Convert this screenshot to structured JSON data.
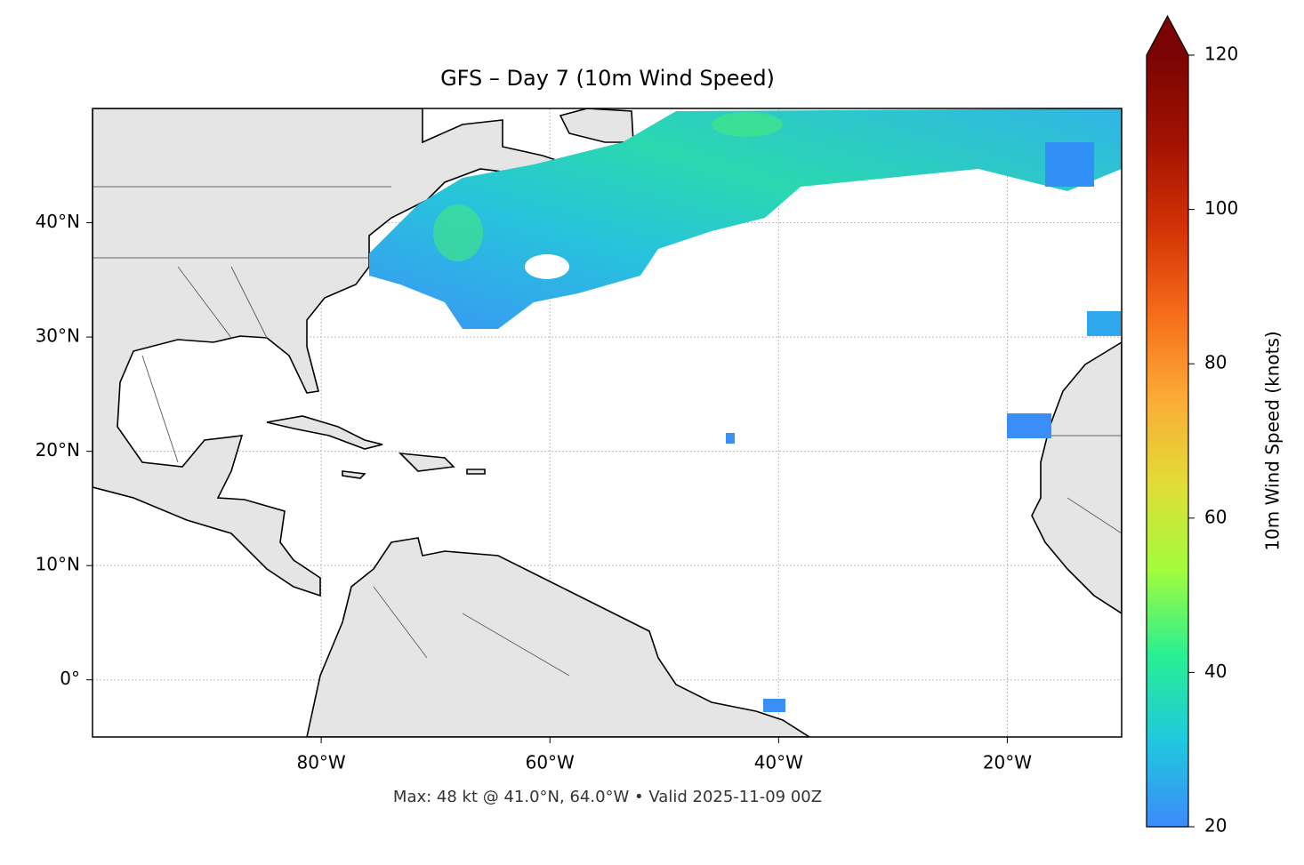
{
  "chart_data": {
    "type": "map",
    "title": "GFS – Day 7 (10m Wind Speed)",
    "annotation": "Max: 48 kt @ 41.0°N, 64.0°W • Valid 2025-11-09 00Z",
    "xlim": [
      -100,
      -10
    ],
    "ylim": [
      -5,
      50
    ],
    "xticks": [
      {
        "value": -80,
        "label": "80°W"
      },
      {
        "value": -60,
        "label": "60°W"
      },
      {
        "value": -40,
        "label": "40°W"
      },
      {
        "value": -20,
        "label": "20°W"
      }
    ],
    "yticks": [
      {
        "value": 0,
        "label": "0°"
      },
      {
        "value": 10,
        "label": "10°N"
      },
      {
        "value": 20,
        "label": "20°N"
      },
      {
        "value": 30,
        "label": "30°N"
      },
      {
        "value": 40,
        "label": "40°N"
      }
    ],
    "grid": true,
    "colorbar": {
      "label": "10m Wind Speed (knots)",
      "lim": [
        20,
        120
      ],
      "ticks": [
        20,
        40,
        60,
        80,
        100,
        120
      ],
      "colors": [
        "#3e8afa",
        "#1fc8de",
        "#29ef92",
        "#a3fc3c",
        "#e1dc37",
        "#fcab36",
        "#f66b19",
        "#d23105",
        "#a21202",
        "#7a0403"
      ]
    }
  }
}
